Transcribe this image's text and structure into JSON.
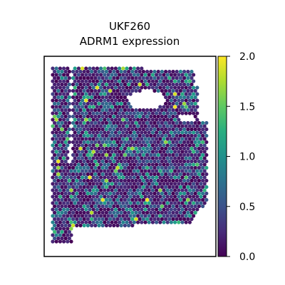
{
  "chart_data": {
    "type": "scatter",
    "title_line1": "UKF260",
    "title_line2": "ADRM1 expression",
    "xlabel": "",
    "ylabel": "",
    "grid": false,
    "colormap": "viridis",
    "colors": {
      "low": "#440154",
      "mid": "#21918c",
      "high": "#fde725"
    },
    "colorbar": {
      "min": 0.0,
      "max": 2.0,
      "ticks": [
        0.0,
        0.5,
        1.0,
        1.5,
        2.0
      ],
      "tick_labels": [
        "0.0",
        "0.5",
        "1.0",
        "1.5",
        "2.0"
      ]
    },
    "value_distribution": {
      "min": 0.0,
      "max": 2.0,
      "typical": 0.3
    }
  }
}
